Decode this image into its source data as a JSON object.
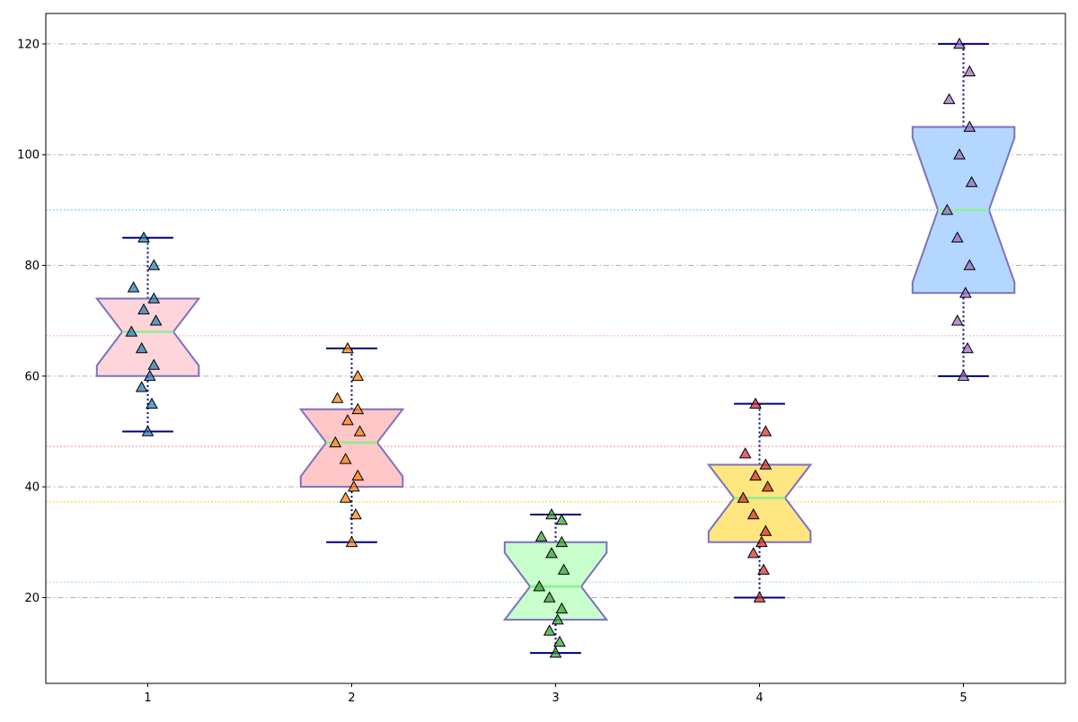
{
  "chart_data": {
    "type": "boxplot",
    "notched": true,
    "title": "",
    "xlabel": "",
    "ylabel": "",
    "categories": [
      "1",
      "2",
      "3",
      "4",
      "5"
    ],
    "ylim": [
      4.5,
      125.5
    ],
    "yticks": [
      20,
      40,
      60,
      80,
      100,
      120
    ],
    "grid": {
      "axis": "y",
      "style": "dash-dot",
      "color": "#b0b0b0"
    },
    "groups": [
      {
        "category": "1",
        "min": 50,
        "q1": 60,
        "median": 68,
        "q3": 74,
        "max": 85,
        "mean": 67.3,
        "box_color": "#ffd5dc",
        "mean_line_color": "#ffb6c1",
        "point_color": "#1f77b4",
        "points": [
          85,
          80,
          76,
          74,
          72,
          70,
          68,
          65,
          62,
          60,
          58,
          55,
          50
        ]
      },
      {
        "category": "2",
        "min": 30,
        "q1": 40,
        "median": 48,
        "q3": 54,
        "max": 65,
        "mean": 47.3,
        "box_color": "#ffc7c7",
        "mean_line_color": "#f4a6a6",
        "point_color": "#ff7f0e",
        "points": [
          65,
          60,
          56,
          54,
          52,
          50,
          48,
          45,
          42,
          40,
          38,
          35,
          30
        ]
      },
      {
        "category": "3",
        "min": 10,
        "q1": 16,
        "median": 22,
        "q3": 30,
        "max": 35,
        "mean": 22.8,
        "box_color": "#c8ffcc",
        "mean_line_color": "#a6eea6",
        "point_color": "#2ca02c",
        "points": [
          35,
          34,
          31,
          30,
          28,
          25,
          22,
          20,
          18,
          16,
          14,
          12,
          10
        ]
      },
      {
        "category": "4",
        "min": 20,
        "q1": 30,
        "median": 38,
        "q3": 44,
        "max": 55,
        "mean": 37.3,
        "box_color": "#ffe680",
        "mean_line_color": "#ffd24d",
        "point_color": "#d62728",
        "points": [
          55,
          50,
          46,
          44,
          42,
          40,
          38,
          35,
          32,
          30,
          28,
          25,
          20
        ]
      },
      {
        "category": "5",
        "min": 60,
        "q1": 75,
        "median": 90,
        "q3": 105,
        "max": 120,
        "mean": 90,
        "box_color": "#b3d7ff",
        "mean_line_color": "#87cefa",
        "point_color": "#9467bd",
        "points": [
          120,
          115,
          110,
          105,
          100,
          95,
          90,
          85,
          80,
          75,
          70,
          65,
          60
        ]
      }
    ],
    "colors": {
      "box_edge": "#7b72c0",
      "median_line": "#90ee90",
      "whisker": "#000080",
      "point_edge": "#000000"
    }
  }
}
